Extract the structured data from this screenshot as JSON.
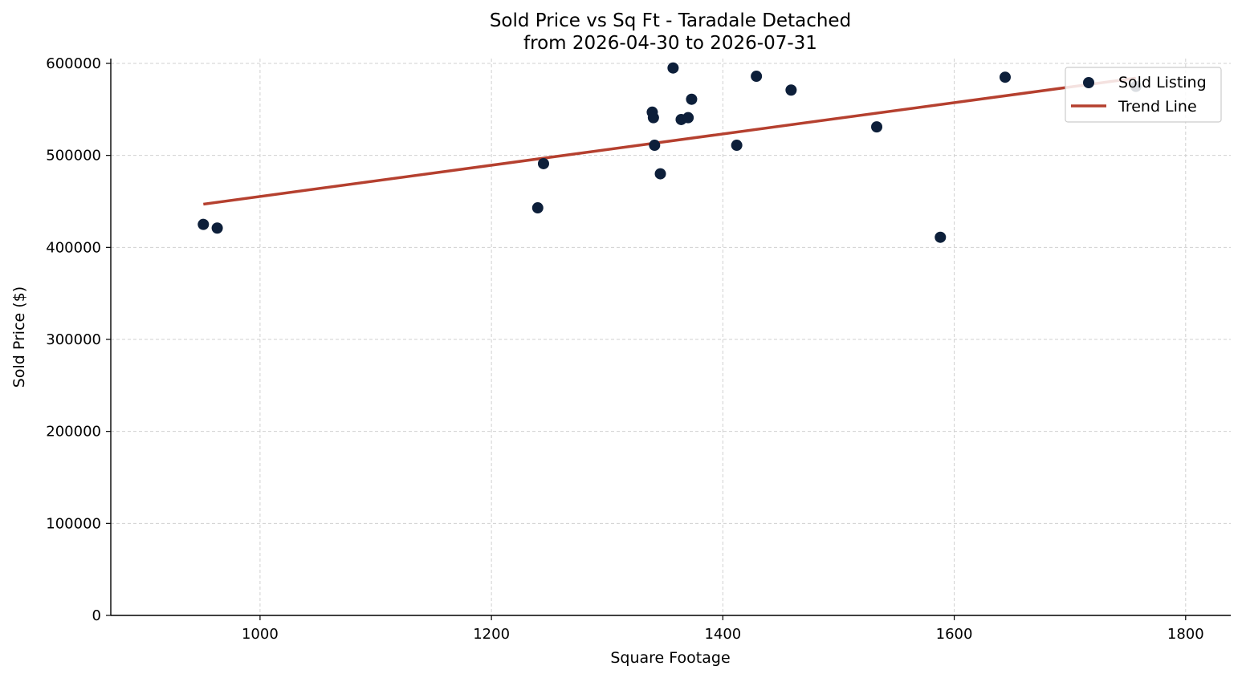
{
  "chart_data": {
    "type": "scatter",
    "title": "Sold Price vs Sq Ft - Taradale Detached",
    "subtitle": "from 2026-04-30 to 2026-07-31",
    "xlabel": "Square Footage",
    "ylabel": "Sold Price ($)",
    "xlim": [
      871,
      1839
    ],
    "ylim": [
      0,
      600000
    ],
    "xticks": [
      1000,
      1200,
      1400,
      1600,
      1800
    ],
    "yticks": [
      0,
      100000,
      200000,
      300000,
      400000,
      500000,
      600000
    ],
    "grid": true,
    "legend_position": "top-right",
    "series": [
      {
        "name": "Sold Listing",
        "kind": "scatter",
        "color": "#0d1f3a",
        "points": [
          {
            "x": 951,
            "y": 425000
          },
          {
            "x": 963,
            "y": 421000
          },
          {
            "x": 1240,
            "y": 443000
          },
          {
            "x": 1245,
            "y": 491000
          },
          {
            "x": 1339,
            "y": 547000
          },
          {
            "x": 1340,
            "y": 541000
          },
          {
            "x": 1341,
            "y": 511000
          },
          {
            "x": 1346,
            "y": 480000
          },
          {
            "x": 1357,
            "y": 595000
          },
          {
            "x": 1364,
            "y": 539000
          },
          {
            "x": 1370,
            "y": 541000
          },
          {
            "x": 1373,
            "y": 561000
          },
          {
            "x": 1412,
            "y": 511000
          },
          {
            "x": 1429,
            "y": 586000
          },
          {
            "x": 1459,
            "y": 571000
          },
          {
            "x": 1533,
            "y": 531000
          },
          {
            "x": 1588,
            "y": 411000
          },
          {
            "x": 1644,
            "y": 585000
          },
          {
            "x": 1757,
            "y": 575000
          }
        ]
      },
      {
        "name": "Trend Line",
        "kind": "line",
        "color": "#b5402f",
        "points": [
          {
            "x": 951,
            "y": 447000
          },
          {
            "x": 1757,
            "y": 584000
          }
        ]
      }
    ]
  }
}
